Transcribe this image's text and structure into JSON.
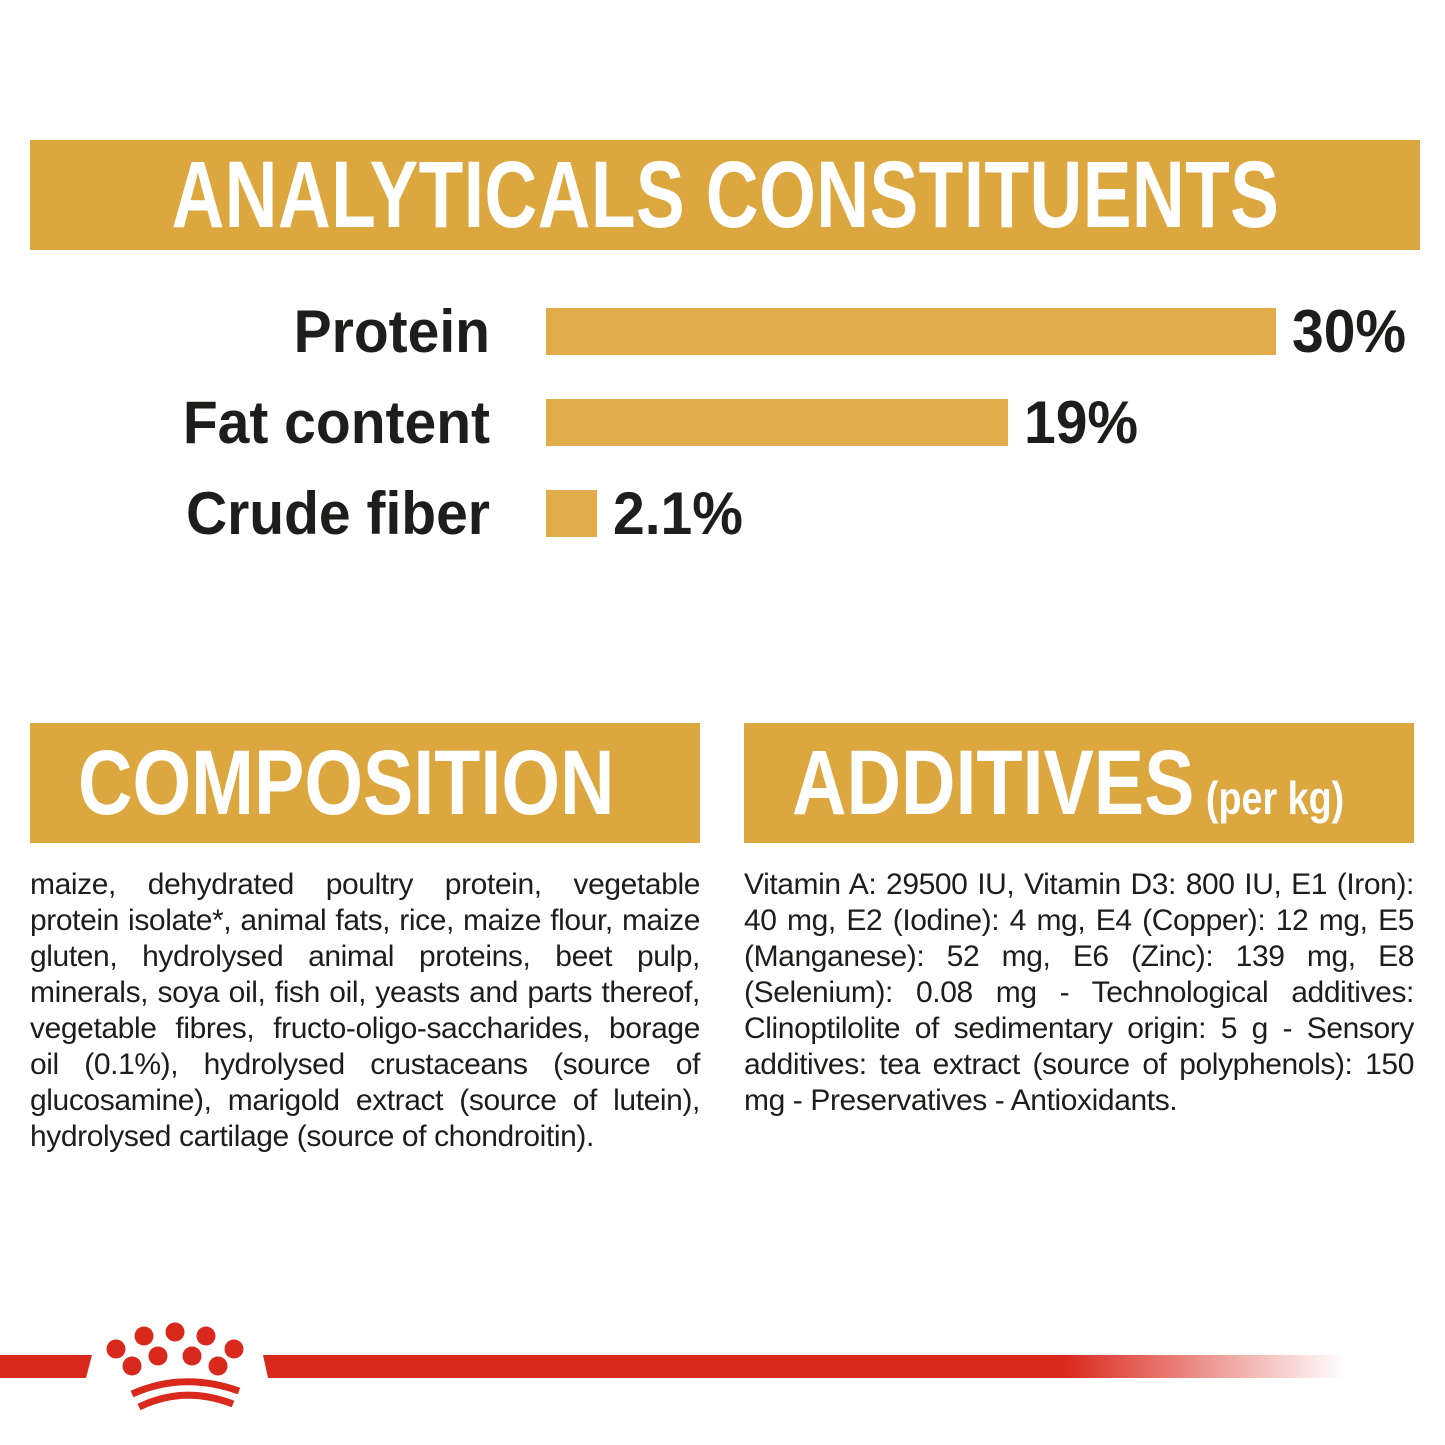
{
  "analyticals": {
    "title": "ANALYTICALS CONSTITUENTS"
  },
  "chart_data": {
    "type": "bar",
    "orientation": "horizontal",
    "title": "ANALYTICALS CONSTITUENTS",
    "categories": [
      "Protein",
      "Fat content",
      "Crude fiber"
    ],
    "values": [
      30,
      19,
      2.1
    ],
    "value_labels": [
      "30%",
      "19%",
      "2.1%"
    ],
    "unit": "%",
    "xlim": [
      0,
      30
    ],
    "grid": false,
    "legend": false,
    "bar_color": "#e2ab4a"
  },
  "composition": {
    "title": "COMPOSITION",
    "body": "maize, dehydrated poultry protein, vegetable protein isolate*, animal fats, rice, maize flour, maize gluten, hydrolysed animal proteins, beet pulp, minerals, soya oil, fish oil, yeasts and parts thereof, vegetable fibres, fructo-oligo-saccharides, borage oil (0.1%), hydrolysed crustaceans (source of glucosamine), marigold extract (source of lutein), hydrolysed cartilage (source of chondroitin)."
  },
  "additives": {
    "title": "ADDITIVES",
    "title_suffix": "(per kg)",
    "body": "Vitamin A: 29500 IU, Vitamin D3: 800 IU, E1 (Iron): 40 mg, E2 (Iodine): 4 mg, E4 (Copper): 12 mg, E5 (Manganese): 52 mg, E6 (Zinc): 139 mg, E8 (Selenium): 0.08 mg - Technological additives: Clinoptilolite of sedimentary origin: 5 g - Sensory additives: tea extract (source of polyphenols): 150 mg - Preservatives - Antioxidants.",
    "footnote_marker": "*"
  },
  "colors": {
    "gold": "#dda740",
    "bar_gold": "#e2ab4a",
    "red": "#d9291d",
    "text": "#1d1d1b"
  },
  "logo": {
    "name": "royal-canin-crown"
  }
}
